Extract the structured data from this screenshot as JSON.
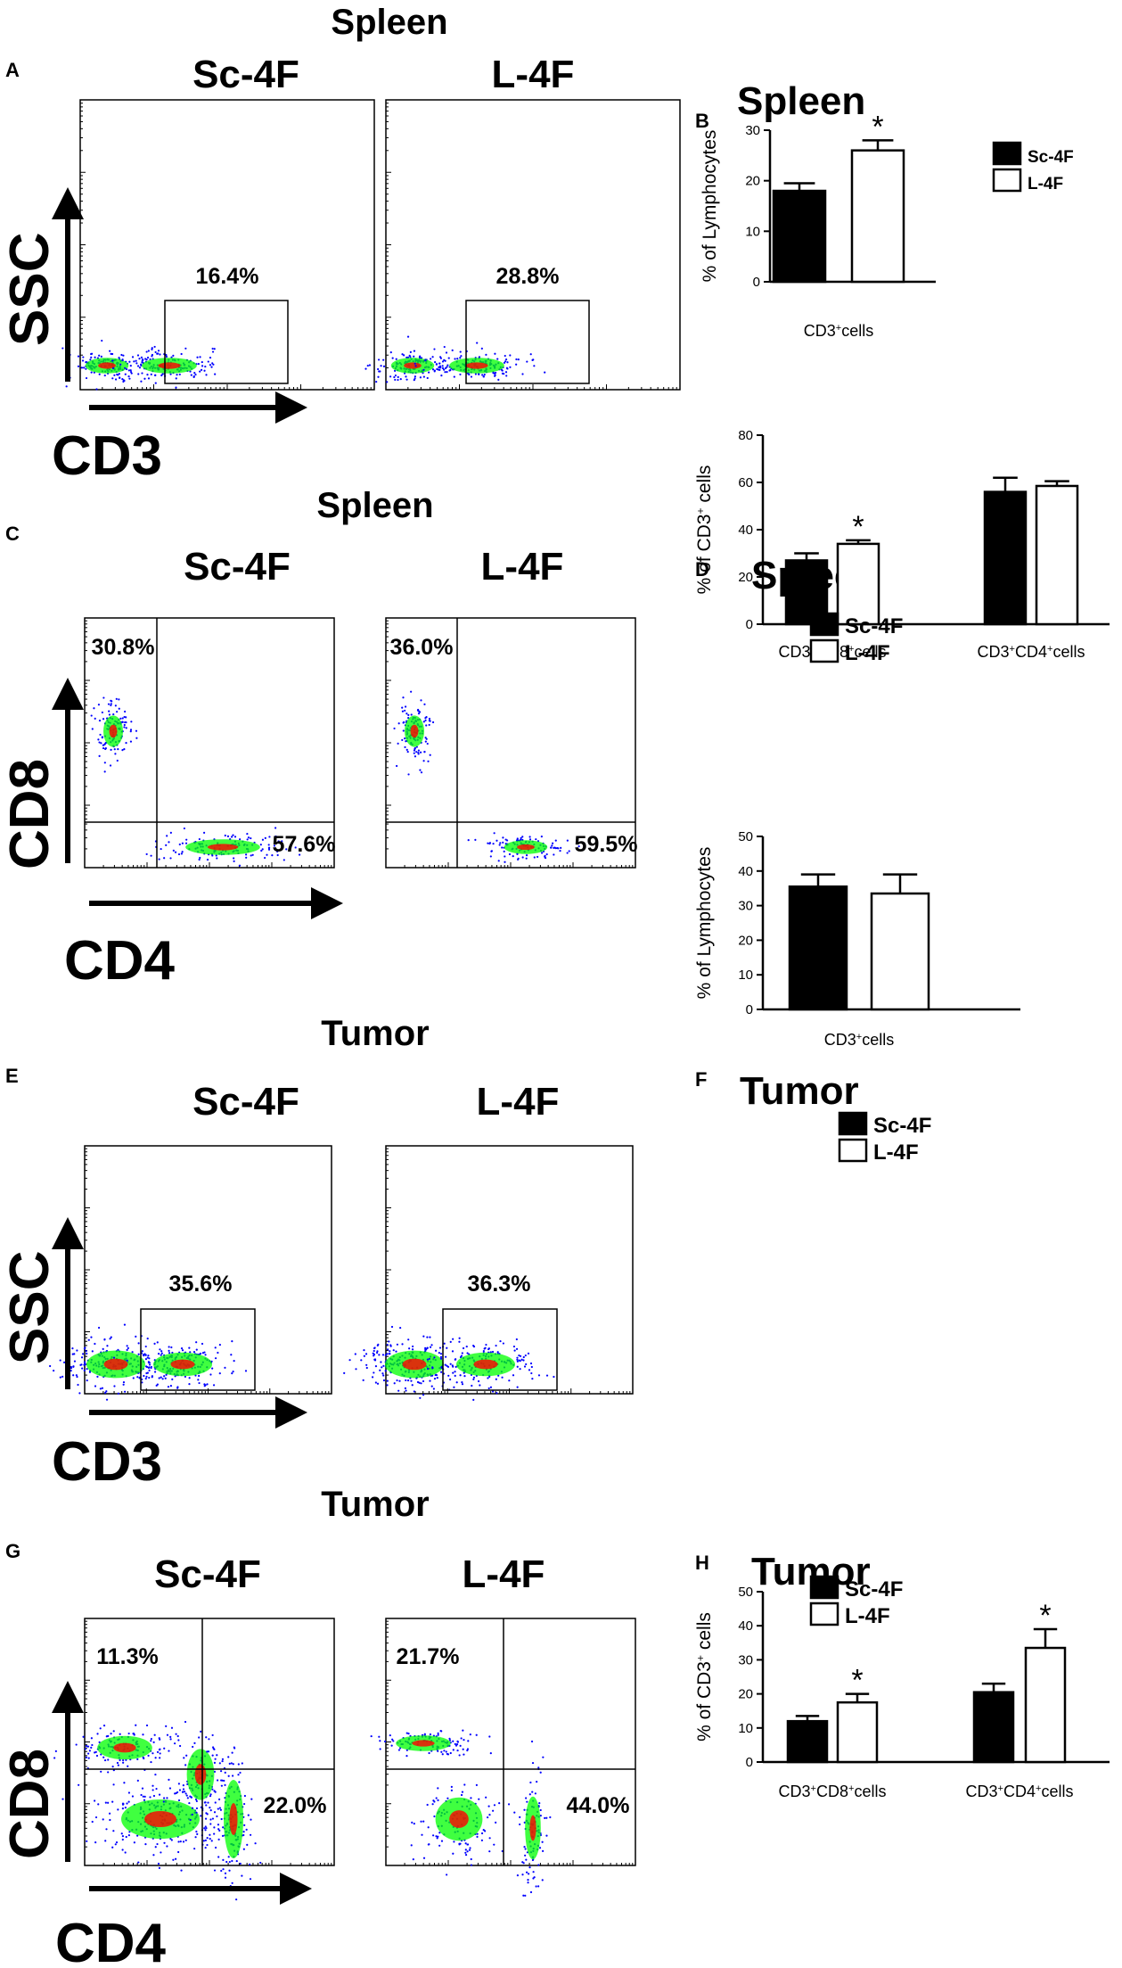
{
  "panel_letters": [
    "A",
    "B",
    "C",
    "D",
    "E",
    "F",
    "G",
    "H"
  ],
  "section_titles": {
    "a": "Spleen",
    "c": "Spleen",
    "e": "Tumor",
    "g": "Tumor"
  },
  "group_labels": {
    "sc4f": "Sc-4F",
    "l4f": "L-4F"
  },
  "axis_labels": {
    "ssc": "SSC",
    "cd3": "CD3",
    "cd8": "CD8",
    "cd4": "CD4"
  },
  "flow_gates": {
    "a_sc": "16.4%",
    "a_l": "28.8%",
    "c_sc_cd8": "30.8%",
    "c_sc_cd4": "57.6%",
    "c_l_cd8": "36.0%",
    "c_l_cd4": "59.5%",
    "e_sc": "35.6%",
    "e_l": "36.3%",
    "g_sc_cd8": "11.3%",
    "g_sc_cd4": "22.0%",
    "g_l_cd8": "21.7%",
    "g_l_cd4": "44.0%"
  },
  "colors": {
    "sc4f_bar": "#000000",
    "l4f_bar": "#ffffff",
    "axis": "#000000",
    "density_low": "#0000ff",
    "density_mid": "#00ff00",
    "density_high": "#ff0000"
  },
  "chart_data": [
    {
      "panel": "B",
      "type": "bar",
      "title": "Spleen",
      "ylabel": "% of Lymphocytes",
      "categories": [
        "CD3+cells"
      ],
      "ylim": [
        0,
        30
      ],
      "yticks": [
        0,
        10,
        20,
        30
      ],
      "legend_position": "top-right",
      "series": [
        {
          "name": "Sc-4F",
          "values": [
            18.0
          ],
          "errors": [
            1.5
          ],
          "sig": [
            false
          ]
        },
        {
          "name": "L-4F",
          "values": [
            26.0
          ],
          "errors": [
            2.0
          ],
          "sig": [
            true
          ]
        }
      ]
    },
    {
      "panel": "D",
      "type": "bar",
      "title": "Spleen",
      "ylabel": "% of CD3+ cells",
      "categories": [
        "CD3+CD8+cells",
        "CD3+CD4+cells"
      ],
      "ylim": [
        0,
        80
      ],
      "yticks": [
        0,
        20,
        40,
        60,
        80
      ],
      "legend_position": "top-left",
      "series": [
        {
          "name": "Sc-4F",
          "values": [
            27.0,
            56.0
          ],
          "errors": [
            3.0,
            6.0
          ],
          "sig": [
            false,
            false
          ]
        },
        {
          "name": "L-4F",
          "values": [
            34.0,
            58.5
          ],
          "errors": [
            1.5,
            2.0
          ],
          "sig": [
            true,
            false
          ]
        }
      ]
    },
    {
      "panel": "F",
      "type": "bar",
      "title": "Tumor",
      "ylabel": "% of Lymphocytes",
      "categories": [
        "CD3+cells"
      ],
      "ylim": [
        0,
        50
      ],
      "yticks": [
        0,
        10,
        20,
        30,
        40,
        50
      ],
      "legend_position": "top",
      "series": [
        {
          "name": "Sc-4F",
          "values": [
            35.5
          ],
          "errors": [
            3.5
          ],
          "sig": [
            false
          ]
        },
        {
          "name": "L-4F",
          "values": [
            33.5
          ],
          "errors": [
            5.5
          ],
          "sig": [
            false
          ]
        }
      ]
    },
    {
      "panel": "H",
      "type": "bar",
      "title": "Tumor",
      "ylabel": "% of CD3+ cells",
      "categories": [
        "CD3+CD8+cells",
        "CD3+CD4+cells"
      ],
      "ylim": [
        0,
        50
      ],
      "yticks": [
        0,
        10,
        20,
        30,
        40,
        50
      ],
      "legend_position": "top-left",
      "series": [
        {
          "name": "Sc-4F",
          "values": [
            12.0,
            20.5
          ],
          "errors": [
            1.5,
            2.5
          ],
          "sig": [
            false,
            false
          ]
        },
        {
          "name": "L-4F",
          "values": [
            17.5,
            33.5
          ],
          "errors": [
            2.5,
            5.5
          ],
          "sig": [
            true,
            true
          ]
        }
      ]
    }
  ]
}
